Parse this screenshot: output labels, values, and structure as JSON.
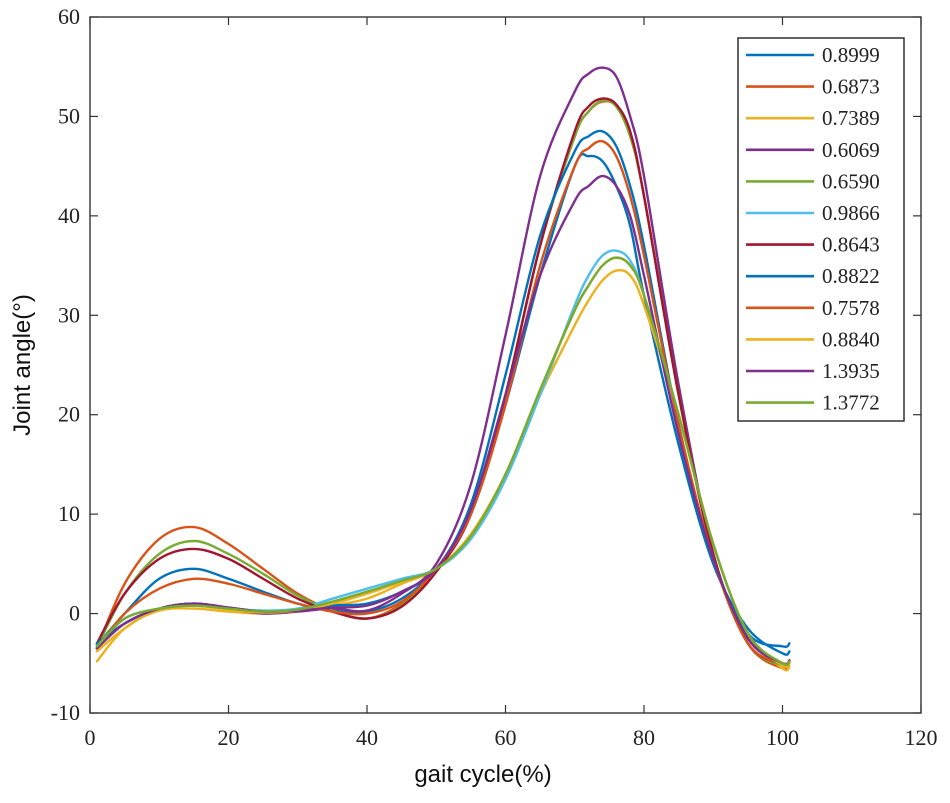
{
  "chart_data": {
    "type": "line",
    "title": "",
    "xlabel": "gait cycle(%)",
    "ylabel": "Joint angle(°)",
    "xlim": [
      0,
      120
    ],
    "ylim": [
      -10,
      60
    ],
    "xticks": [
      0,
      20,
      40,
      60,
      80,
      100,
      120
    ],
    "yticks": [
      -10,
      0,
      10,
      20,
      30,
      40,
      50,
      60
    ],
    "xtick_labels": [
      "0",
      "20",
      "40",
      "60",
      "80",
      "100",
      "120"
    ],
    "ytick_labels": [
      "-10",
      "0",
      "10",
      "20",
      "30",
      "40",
      "50",
      "60"
    ],
    "grid": false,
    "legend_position": "top-right",
    "x": [
      1,
      5,
      10,
      15,
      20,
      25,
      30,
      35,
      40,
      45,
      50,
      55,
      60,
      65,
      70,
      72,
      74,
      76,
      78,
      80,
      85,
      90,
      95,
      100,
      101
    ],
    "series": [
      {
        "name": "0.8999",
        "color": "#0072BD",
        "values": [
          -3.2,
          0.0,
          3.5,
          4.5,
          3.5,
          2.2,
          1.0,
          0.3,
          0.2,
          1.5,
          4.5,
          10.0,
          21.0,
          34.0,
          45.0,
          46.0,
          45.5,
          43.0,
          39.0,
          32.0,
          17.0,
          5.0,
          -1.5,
          -4.0,
          -3.8
        ]
      },
      {
        "name": "0.6873",
        "color": "#D95319",
        "values": [
          -3.5,
          3.0,
          7.5,
          8.7,
          7.0,
          4.5,
          2.0,
          0.3,
          -0.5,
          1.0,
          4.5,
          10.0,
          22.0,
          37.0,
          48.0,
          50.5,
          51.5,
          51.0,
          48.0,
          42.0,
          22.0,
          6.0,
          -3.0,
          -5.5,
          -5.0
        ]
      },
      {
        "name": "0.7389",
        "color": "#EDB120",
        "values": [
          -4.8,
          -1.5,
          0.3,
          0.5,
          0.2,
          0.0,
          0.2,
          0.8,
          1.5,
          3.0,
          4.5,
          8.0,
          14.0,
          22.0,
          29.0,
          31.5,
          33.5,
          34.5,
          34.0,
          31.0,
          20.0,
          7.0,
          -2.0,
          -5.5,
          -5.3
        ]
      },
      {
        "name": "0.6069",
        "color": "#7E2F8E",
        "values": [
          -3.5,
          -1.0,
          0.5,
          1.0,
          0.5,
          0.0,
          0.2,
          0.5,
          0.3,
          2.0,
          5.0,
          13.0,
          28.0,
          44.0,
          52.5,
          54.3,
          54.9,
          54.0,
          50.0,
          44.0,
          23.0,
          6.0,
          -2.5,
          -5.0,
          -4.8
        ]
      },
      {
        "name": "0.6590",
        "color": "#77AC30",
        "values": [
          -3.4,
          2.0,
          6.0,
          7.3,
          6.0,
          4.0,
          1.8,
          0.3,
          -0.5,
          0.8,
          4.3,
          10.0,
          22.0,
          37.0,
          48.0,
          50.5,
          51.6,
          51.0,
          48.0,
          42.0,
          22.0,
          6.0,
          -3.0,
          -5.2,
          -4.8
        ]
      },
      {
        "name": "0.9866",
        "color": "#4DBEEE",
        "values": [
          -3.2,
          -0.5,
          0.5,
          0.8,
          0.5,
          0.3,
          0.5,
          1.5,
          2.5,
          3.5,
          4.5,
          7.5,
          13.5,
          22.0,
          31.0,
          34.0,
          36.0,
          36.5,
          35.5,
          32.0,
          20.0,
          7.0,
          -2.0,
          -5.0,
          -4.8
        ]
      },
      {
        "name": "0.8643",
        "color": "#A2142F",
        "values": [
          -3.0,
          2.0,
          5.5,
          6.5,
          5.5,
          3.5,
          1.5,
          0.2,
          -0.5,
          0.7,
          4.2,
          10.0,
          22.0,
          37.0,
          48.5,
          51.0,
          51.8,
          51.2,
          48.5,
          42.0,
          22.0,
          6.0,
          -3.0,
          -5.0,
          -4.7
        ]
      },
      {
        "name": "0.8822",
        "color": "#0072BD",
        "values": [
          -3.0,
          -1.0,
          0.5,
          1.0,
          0.6,
          0.2,
          0.3,
          0.8,
          1.0,
          2.2,
          4.5,
          11.0,
          24.0,
          38.0,
          46.5,
          48.0,
          48.5,
          47.0,
          43.0,
          37.0,
          19.0,
          5.5,
          -2.0,
          -3.3,
          -3.0
        ]
      },
      {
        "name": "0.7578",
        "color": "#D95319",
        "values": [
          -3.5,
          0.0,
          2.5,
          3.5,
          3.0,
          2.0,
          1.0,
          0.2,
          0.0,
          1.2,
          4.5,
          10.0,
          21.0,
          35.0,
          45.0,
          46.8,
          47.5,
          46.0,
          42.0,
          36.0,
          19.0,
          5.5,
          -3.0,
          -5.0,
          -4.8
        ]
      },
      {
        "name": "0.8840",
        "color": "#EDB120",
        "values": [
          -3.8,
          -1.5,
          0.5,
          0.8,
          0.4,
          0.1,
          0.3,
          1.0,
          2.0,
          3.2,
          4.5,
          7.8,
          14.0,
          22.5,
          30.5,
          33.0,
          35.0,
          35.8,
          35.0,
          32.0,
          20.0,
          7.0,
          -2.0,
          -5.2,
          -5.0
        ]
      },
      {
        "name": "1.3935",
        "color": "#7E2F8E",
        "values": [
          -3.5,
          -1.0,
          0.5,
          1.0,
          0.6,
          0.2,
          0.3,
          0.6,
          0.8,
          2.2,
          4.5,
          10.5,
          22.0,
          34.0,
          41.5,
          43.0,
          44.0,
          43.0,
          40.0,
          34.0,
          18.0,
          5.5,
          -2.5,
          -5.0,
          -4.8
        ]
      },
      {
        "name": "1.3772",
        "color": "#77AC30",
        "values": [
          -3.3,
          -0.5,
          0.5,
          0.8,
          0.5,
          0.2,
          0.4,
          1.2,
          2.2,
          3.3,
          4.5,
          7.8,
          14.0,
          22.5,
          30.5,
          33.0,
          35.0,
          35.8,
          35.0,
          32.0,
          20.0,
          7.0,
          -2.0,
          -5.0,
          -4.8
        ]
      }
    ]
  }
}
